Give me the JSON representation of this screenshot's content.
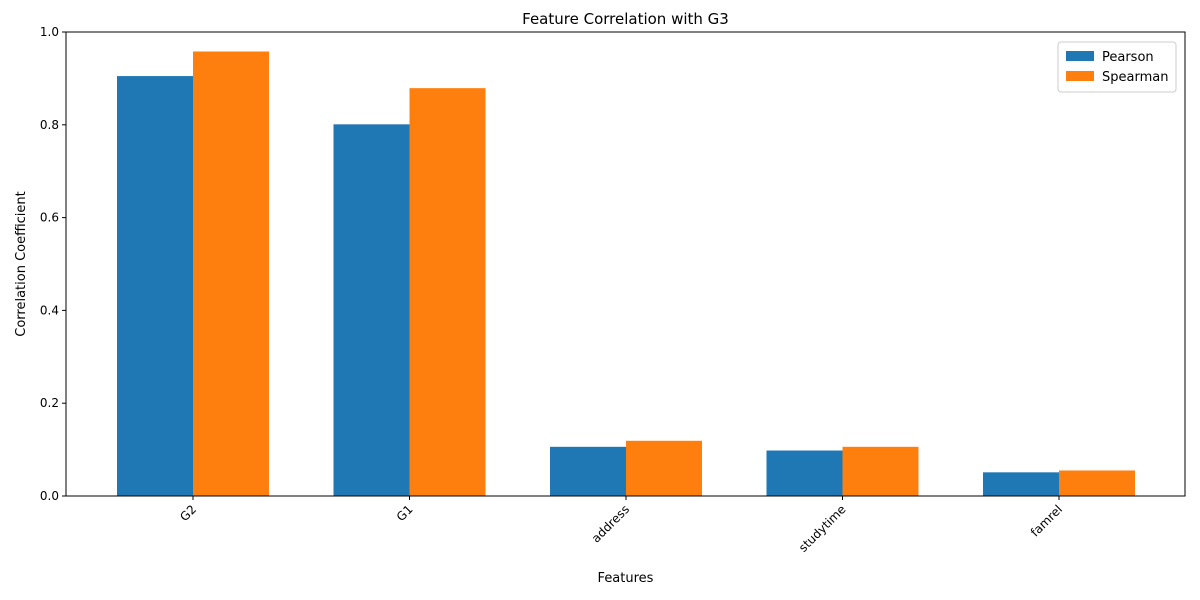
{
  "chart_data": {
    "type": "bar",
    "title": "Feature Correlation with G3",
    "xlabel": "Features",
    "ylabel": "Correlation Coefficient",
    "categories": [
      "G2",
      "G1",
      "address",
      "studytime",
      "famrel"
    ],
    "series": [
      {
        "name": "Pearson",
        "color": "#1f77b4",
        "values": [
          0.905,
          0.801,
          0.106,
          0.098,
          0.051
        ]
      },
      {
        "name": "Spearman",
        "color": "#ff7f0e",
        "values": [
          0.958,
          0.879,
          0.119,
          0.106,
          0.055
        ]
      }
    ],
    "ylim": [
      0,
      1.0
    ],
    "yticks": [
      "0.0",
      "0.2",
      "0.4",
      "0.6",
      "0.8",
      "1.0"
    ],
    "grid": false,
    "legend_position": "top-right"
  }
}
